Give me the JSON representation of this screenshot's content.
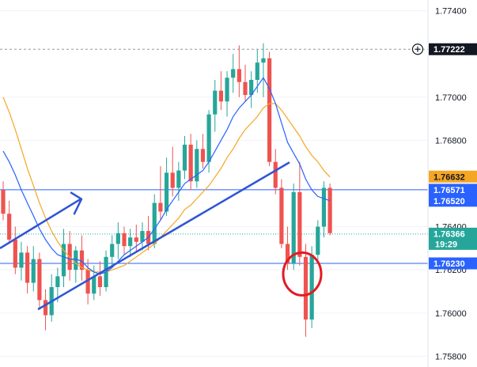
{
  "chart_data": {
    "type": "candlestick",
    "y_axis_ticks": [
      "1.77400",
      "1.77000",
      "1.76800",
      "1.76400",
      "1.76200",
      "1.76000",
      "1.75800"
    ],
    "ylim": [
      1.7575,
      1.7745
    ],
    "colors": {
      "up": "#26a69a",
      "down": "#ef5350",
      "fast_ma": "#2962ff",
      "slow_ma": "#f5a623",
      "trendline": "#2f55d4",
      "level_line": "#2962ff",
      "circle": "#e31b23"
    },
    "price_labels": [
      {
        "name": "dotted-high",
        "text": "1.77222",
        "value": 1.77222,
        "bg": "#131722",
        "fg": "#ffffff"
      },
      {
        "name": "ma-slow",
        "text": "1.76632",
        "value": 1.76632,
        "bg": "#f5a623",
        "fg": "#131722"
      },
      {
        "name": "level-upper",
        "text": "1.76571",
        "value": 1.76571,
        "bg": "#2962ff",
        "fg": "#ffffff"
      },
      {
        "name": "ma-fast",
        "text": "1.76520",
        "value": 1.7652,
        "bg": "#2962ff",
        "fg": "#ffffff"
      },
      {
        "name": "last-price",
        "text": "1.76366",
        "value": 1.76366,
        "bg": "#26a69a",
        "fg": "#ffffff",
        "countdown": "19:29"
      },
      {
        "name": "level-lower",
        "text": "1.76230",
        "value": 1.7623,
        "bg": "#2962ff",
        "fg": "#ffffff"
      }
    ],
    "horizontal_levels": [
      1.76571,
      1.7623
    ],
    "dotted_high": 1.77222,
    "last_price": 1.76366,
    "candles": [
      [
        1.7657,
        1.7661,
        1.7643,
        1.7646
      ],
      [
        1.7646,
        1.7652,
        1.7632,
        1.7634
      ],
      [
        1.7634,
        1.764,
        1.7618,
        1.7621
      ],
      [
        1.7621,
        1.7633,
        1.7615,
        1.7628
      ],
      [
        1.7628,
        1.7631,
        1.7609,
        1.7614
      ],
      [
        1.7614,
        1.7631,
        1.761,
        1.7625
      ],
      [
        1.7625,
        1.7628,
        1.7602,
        1.7606
      ],
      [
        1.7606,
        1.7611,
        1.7592,
        1.7599
      ],
      [
        1.7599,
        1.7618,
        1.7596,
        1.7612
      ],
      [
        1.7612,
        1.7621,
        1.7605,
        1.7617
      ],
      [
        1.7617,
        1.7639,
        1.7612,
        1.7632
      ],
      [
        1.7632,
        1.7638,
        1.7615,
        1.762
      ],
      [
        1.762,
        1.7631,
        1.7614,
        1.7629
      ],
      [
        1.7629,
        1.7636,
        1.7615,
        1.762
      ],
      [
        1.762,
        1.7625,
        1.7604,
        1.7609
      ],
      [
        1.7609,
        1.7622,
        1.7606,
        1.7617
      ],
      [
        1.7617,
        1.7624,
        1.7608,
        1.7612
      ],
      [
        1.7612,
        1.7629,
        1.761,
        1.7626
      ],
      [
        1.7626,
        1.7636,
        1.7621,
        1.7632
      ],
      [
        1.7632,
        1.7642,
        1.7625,
        1.7637
      ],
      [
        1.7637,
        1.764,
        1.7627,
        1.7631
      ],
      [
        1.7631,
        1.7639,
        1.7626,
        1.7635
      ],
      [
        1.7635,
        1.7641,
        1.7628,
        1.7633
      ],
      [
        1.7633,
        1.7642,
        1.7629,
        1.7638
      ],
      [
        1.7638,
        1.7645,
        1.7629,
        1.7632
      ],
      [
        1.7632,
        1.7655,
        1.763,
        1.7651
      ],
      [
        1.7651,
        1.7668,
        1.7643,
        1.7647
      ],
      [
        1.7647,
        1.7672,
        1.7645,
        1.7665
      ],
      [
        1.7665,
        1.7677,
        1.7654,
        1.7658
      ],
      [
        1.7658,
        1.767,
        1.7652,
        1.7666
      ],
      [
        1.7666,
        1.7682,
        1.7662,
        1.7678
      ],
      [
        1.7678,
        1.7683,
        1.7657,
        1.7661
      ],
      [
        1.7661,
        1.768,
        1.7658,
        1.7676
      ],
      [
        1.7676,
        1.7683,
        1.7667,
        1.767
      ],
      [
        1.767,
        1.7694,
        1.7665,
        1.7692
      ],
      [
        1.7692,
        1.7708,
        1.7684,
        1.7703
      ],
      [
        1.7703,
        1.7712,
        1.7694,
        1.7698
      ],
      [
        1.7698,
        1.7712,
        1.7691,
        1.7709
      ],
      [
        1.7709,
        1.772,
        1.7702,
        1.7713
      ],
      [
        1.7713,
        1.7724,
        1.77,
        1.7707
      ],
      [
        1.7707,
        1.7715,
        1.7698,
        1.7701
      ],
      [
        1.7701,
        1.7712,
        1.7695,
        1.7708
      ],
      [
        1.7708,
        1.7722,
        1.7702,
        1.7716
      ],
      [
        1.7716,
        1.7725,
        1.77,
        1.7718
      ],
      [
        1.7718,
        1.7721,
        1.7668,
        1.767
      ],
      [
        1.767,
        1.7676,
        1.7655,
        1.7658
      ],
      [
        1.7658,
        1.7662,
        1.763,
        1.7632
      ],
      [
        1.7632,
        1.764,
        1.762,
        1.7623
      ],
      [
        1.7623,
        1.766,
        1.762,
        1.7656
      ],
      [
        1.7656,
        1.767,
        1.7622,
        1.7626
      ],
      [
        1.7626,
        1.7632,
        1.7589,
        1.7597
      ],
      [
        1.7597,
        1.7631,
        1.7593,
        1.7627
      ],
      [
        1.7627,
        1.7643,
        1.7623,
        1.764
      ],
      [
        1.764,
        1.7661,
        1.7635,
        1.7658
      ],
      [
        1.7658,
        1.766,
        1.7636,
        1.7637
      ]
    ],
    "ma_fast": [
      1.7675,
      1.767,
      1.7664,
      1.7657,
      1.7651,
      1.7645,
      1.7639,
      1.7634,
      1.763,
      1.7627,
      1.7626,
      1.7625,
      1.7625,
      1.7624,
      1.7621,
      1.7619,
      1.7618,
      1.7619,
      1.7621,
      1.7624,
      1.7627,
      1.7629,
      1.7631,
      1.7633,
      1.7635,
      1.7639,
      1.7643,
      1.7648,
      1.7652,
      1.7656,
      1.766,
      1.7662,
      1.7664,
      1.7666,
      1.767,
      1.7675,
      1.768,
      1.7685,
      1.7691,
      1.7695,
      1.7698,
      1.7701,
      1.7705,
      1.7709,
      1.7704,
      1.7697,
      1.7688,
      1.7679,
      1.7674,
      1.7669,
      1.7662,
      1.7657,
      1.7654,
      1.7653,
      1.7652
    ],
    "ma_slow": [
      1.77,
      1.7693,
      1.7685,
      1.7676,
      1.7667,
      1.7659,
      1.7651,
      1.7644,
      1.7638,
      1.7633,
      1.7629,
      1.7626,
      1.7623,
      1.7621,
      1.762,
      1.7619,
      1.7619,
      1.7619,
      1.762,
      1.7621,
      1.7622,
      1.7624,
      1.7626,
      1.7628,
      1.763,
      1.7632,
      1.7635,
      1.7638,
      1.7641,
      1.7644,
      1.7648,
      1.765,
      1.7653,
      1.7656,
      1.7659,
      1.7663,
      1.7667,
      1.7672,
      1.7676,
      1.7681,
      1.7685,
      1.7688,
      1.7691,
      1.7695,
      1.7697,
      1.7697,
      1.7694,
      1.769,
      1.7686,
      1.7682,
      1.7677,
      1.7673,
      1.767,
      1.7666,
      1.7663
    ]
  }
}
